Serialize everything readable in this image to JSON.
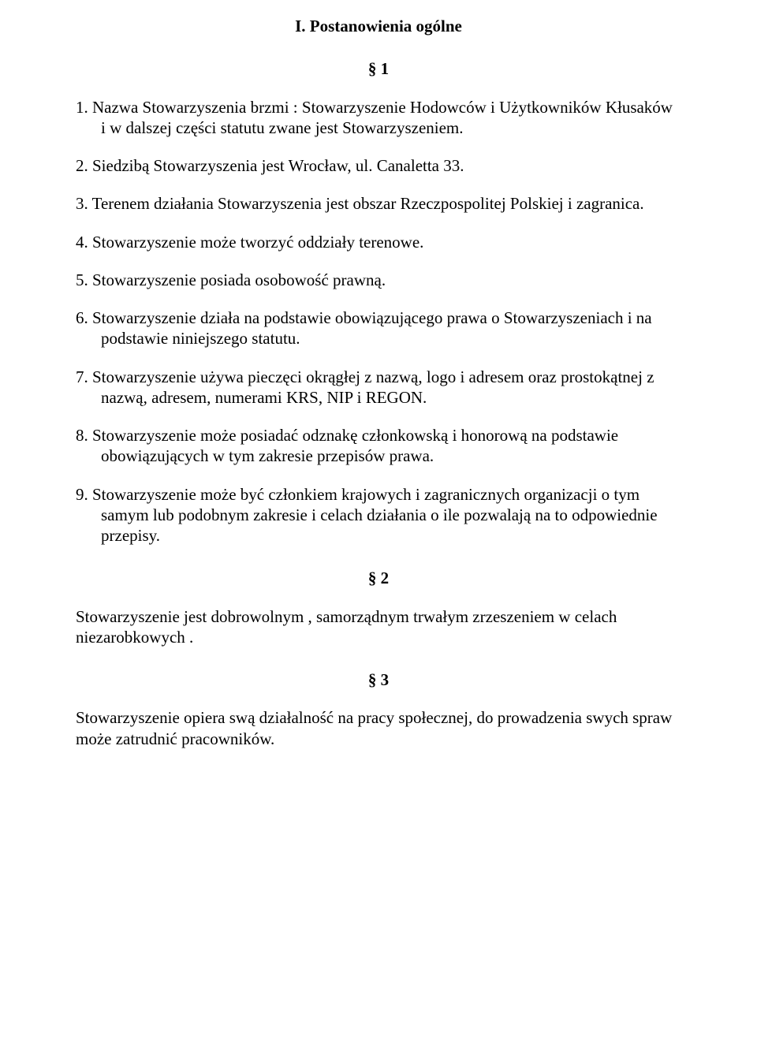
{
  "title": "I. Postanowienia ogólne",
  "s1": {
    "mark": "§ 1",
    "items": [
      "1. Nazwa Stowarzyszenia brzmi : Stowarzyszenie Hodowców i Użytkowników Kłusaków i w dalszej części statutu zwane jest Stowarzyszeniem.",
      "2. Siedzibą Stowarzyszenia jest Wrocław, ul. Canaletta 33.",
      "3. Terenem działania Stowarzyszenia jest obszar Rzeczpospolitej Polskiej i zagranica.",
      "4. Stowarzyszenie może tworzyć oddziały terenowe.",
      "5. Stowarzyszenie posiada osobowość prawną.",
      "6. Stowarzyszenie działa na podstawie obowiązującego prawa o Stowarzyszeniach i na podstawie niniejszego statutu.",
      "7. Stowarzyszenie używa pieczęci okrągłej z nazwą,  logo i adresem  oraz prostokątnej z nazwą, adresem, numerami KRS, NIP i REGON.",
      "8. Stowarzyszenie może posiadać odznakę członkowską i honorową na podstawie obowiązujących w tym zakresie przepisów prawa.",
      "9. Stowarzyszenie może być członkiem krajowych i zagranicznych organizacji o tym samym lub podobnym zakresie i celach działania o ile pozwalają na to odpowiednie przepisy."
    ]
  },
  "s2": {
    "mark": "§ 2",
    "text": "Stowarzyszenie jest dobrowolnym , samorządnym trwałym zrzeszeniem w celach niezarobkowych ."
  },
  "s3": {
    "mark": "§ 3",
    "text": "Stowarzyszenie opiera swą działalność na pracy społecznej, do prowadzenia swych spraw może zatrudnić pracowników."
  }
}
